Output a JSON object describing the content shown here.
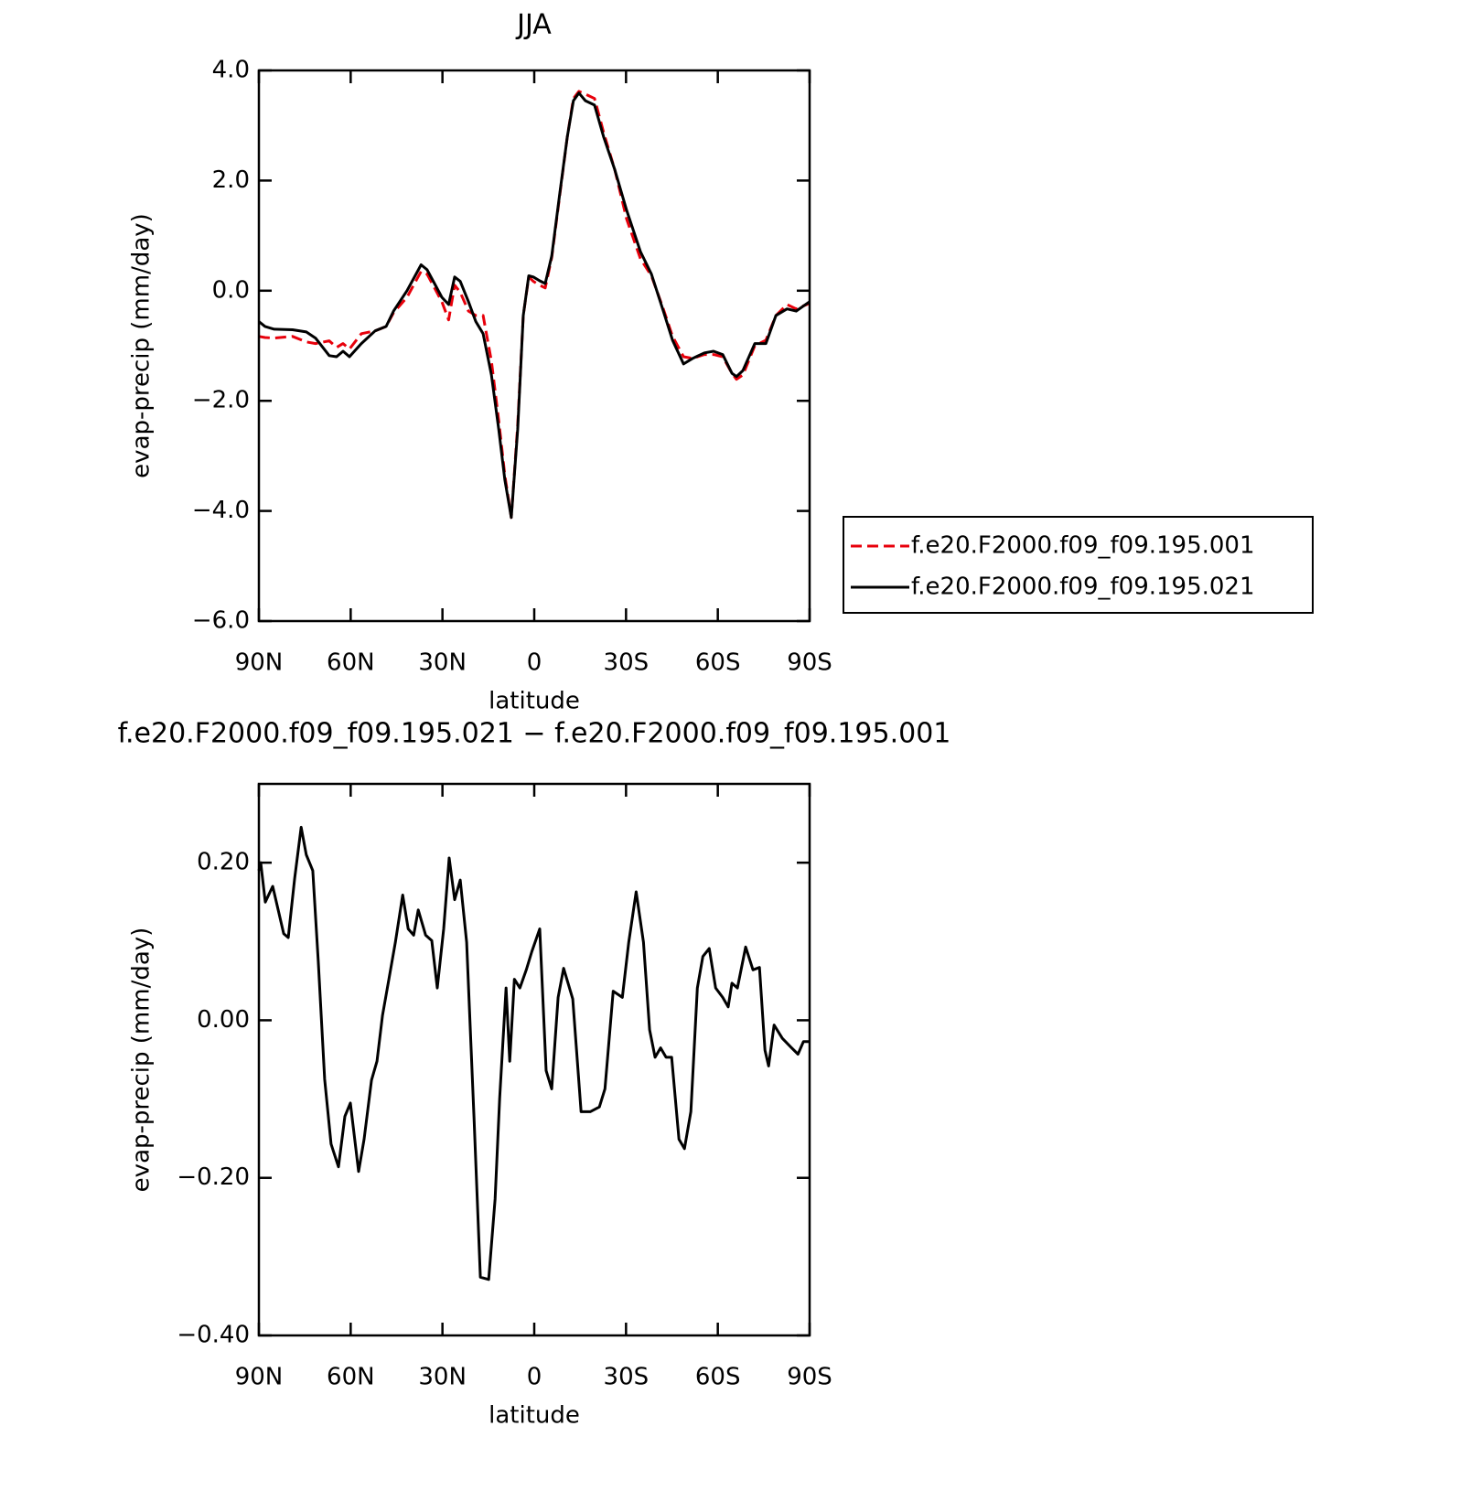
{
  "chart_data": [
    {
      "type": "line",
      "title": "JJA",
      "x_label": "latitude",
      "y_label": "evap-precip (mm/day)",
      "xlim": [
        90,
        -90
      ],
      "xticks": [
        {
          "value": 90,
          "label": "90N"
        },
        {
          "value": 60,
          "label": "60N"
        },
        {
          "value": 30,
          "label": "30N"
        },
        {
          "value": 0,
          "label": "0"
        },
        {
          "value": -30,
          "label": "30S"
        },
        {
          "value": -60,
          "label": "60S"
        },
        {
          "value": -90,
          "label": "90S"
        }
      ],
      "ylim": [
        -6,
        4
      ],
      "yticks": [
        {
          "value": 4,
          "label": "4.0"
        },
        {
          "value": 2,
          "label": "2.0"
        },
        {
          "value": 0,
          "label": "0.0"
        },
        {
          "value": -2,
          "label": "−2.0"
        },
        {
          "value": -4,
          "label": "−4.0"
        },
        {
          "value": -6,
          "label": "−6.0"
        }
      ],
      "legend": "right",
      "x": [
        90,
        88,
        85,
        79,
        74.5,
        71.5,
        67,
        64.6,
        62.5,
        60.4,
        56.5,
        52,
        48.4,
        46,
        41.6,
        37,
        35,
        32.6,
        30.2,
        28,
        26,
        24.2,
        21.5,
        19.1,
        16.7,
        14,
        11.6,
        9.6,
        7.5,
        5.4,
        3.6,
        1.8,
        0.3,
        -1.8,
        -3.6,
        -5.7,
        -8.4,
        -10.8,
        -12.8,
        -14.6,
        -16.7,
        -19.7,
        -22.7,
        -26.3,
        -30.2,
        -34.7,
        -38.3,
        -42.2,
        -45.2,
        -48.8,
        -51.8,
        -55.6,
        -58.6,
        -61.6,
        -64.6,
        -66.1,
        -68.2,
        -72.1,
        -75.7,
        -79,
        -82.6,
        -85.6,
        -90
      ],
      "series": [
        {
          "name": "f.e20.F2000.f09_f09.195.001",
          "color": "#e8000b",
          "dashed": true,
          "values": [
            -0.83,
            -0.85,
            -0.86,
            -0.83,
            -0.93,
            -0.96,
            -0.91,
            -1.03,
            -0.96,
            -1.06,
            -0.78,
            -0.73,
            -0.65,
            -0.4,
            -0.12,
            0.35,
            0.3,
            0.05,
            -0.2,
            -0.53,
            0.1,
            -0.03,
            -0.37,
            -0.45,
            -0.45,
            -1.28,
            -2.36,
            -3.36,
            -4.12,
            -2.44,
            -0.45,
            0.25,
            0.17,
            0.1,
            0.05,
            0.6,
            1.76,
            2.79,
            3.49,
            3.62,
            3.57,
            3.49,
            2.87,
            2.2,
            1.3,
            0.58,
            0.27,
            -0.33,
            -0.83,
            -1.2,
            -1.23,
            -1.16,
            -1.16,
            -1.2,
            -1.5,
            -1.61,
            -1.53,
            -1.0,
            -0.9,
            -0.45,
            -0.25,
            -0.33,
            -0.23
          ]
        },
        {
          "name": "f.e20.F2000.f09_f09.195.021",
          "color": "#000000",
          "dashed": false,
          "values": [
            -0.56,
            -0.65,
            -0.7,
            -0.71,
            -0.75,
            -0.86,
            -1.18,
            -1.2,
            -1.1,
            -1.2,
            -0.96,
            -0.73,
            -0.65,
            -0.37,
            0,
            0.47,
            0.38,
            0.13,
            -0.12,
            -0.25,
            0.25,
            0.17,
            -0.2,
            -0.56,
            -0.78,
            -1.53,
            -2.52,
            -3.44,
            -4.12,
            -2.52,
            -0.45,
            0.27,
            0.25,
            0.18,
            0.13,
            0.63,
            1.79,
            2.79,
            3.45,
            3.59,
            3.45,
            3.37,
            2.79,
            2.2,
            1.46,
            0.71,
            0.3,
            -0.37,
            -0.9,
            -1.33,
            -1.23,
            -1.13,
            -1.1,
            -1.16,
            -1.5,
            -1.56,
            -1.45,
            -0.96,
            -0.96,
            -0.45,
            -0.33,
            -0.37,
            -0.2
          ]
        }
      ]
    },
    {
      "type": "line",
      "title": "f.e20.F2000.f09_f09.195.021 − f.e20.F2000.f09_f09.195.001",
      "x_label": "latitude",
      "y_label": "evap-precip (mm/day)",
      "xlim": [
        90,
        -90
      ],
      "xticks": [
        {
          "value": 90,
          "label": "90N"
        },
        {
          "value": 60,
          "label": "60N"
        },
        {
          "value": 30,
          "label": "30N"
        },
        {
          "value": 0,
          "label": "0"
        },
        {
          "value": -30,
          "label": "30S"
        },
        {
          "value": -60,
          "label": "60S"
        },
        {
          "value": -90,
          "label": "90S"
        }
      ],
      "ylim": [
        -0.4,
        0.3
      ],
      "yticks": [
        {
          "value": 0.2,
          "label": "0.20"
        },
        {
          "value": 0,
          "label": "0.00"
        },
        {
          "value": -0.2,
          "label": "−0.20"
        },
        {
          "value": -0.4,
          "label": "−0.40"
        }
      ],
      "x": [
        90,
        89.4,
        87.9,
        85.5,
        84,
        81.9,
        80.4,
        78.3,
        76.2,
        74.5,
        72.4,
        70.6,
        68.5,
        66.4,
        64,
        61.9,
        60.1,
        57.4,
        55.6,
        53.2,
        51.4,
        49.6,
        47.5,
        45.4,
        43,
        41.2,
        39.4,
        37.9,
        35.5,
        33.5,
        31.7,
        29.6,
        27.8,
        26,
        24.2,
        22.1,
        19.7,
        17.6,
        14.9,
        12.8,
        11.3,
        9.2,
        8,
        6.5,
        4.7,
        2.6,
        0.8,
        -1.8,
        -3.9,
        -5.7,
        -7.8,
        -9.6,
        -12.6,
        -15.3,
        -18.3,
        -21.3,
        -23.1,
        -25.8,
        -28.8,
        -30.9,
        -33.3,
        -35.7,
        -37.7,
        -39.5,
        -41.3,
        -43.1,
        -44.9,
        -47.3,
        -49.1,
        -51.2,
        -53.3,
        -55.1,
        -57.2,
        -59.3,
        -61.6,
        -63.4,
        -64.6,
        -66.4,
        -69.1,
        -71.5,
        -73.6,
        -75.4,
        -76.6,
        -78.4,
        -81.1,
        -84.1,
        -86.2,
        -88,
        -90
      ],
      "series": [
        {
          "color": "#000000",
          "dashed": false,
          "values": [
            0.19,
            0.2,
            0.15,
            0.17,
            0.145,
            0.11,
            0.105,
            0.18,
            0.245,
            0.21,
            0.19,
            0.075,
            -0.075,
            -0.157,
            -0.186,
            -0.122,
            -0.105,
            -0.192,
            -0.151,
            -0.076,
            -0.052,
            0.006,
            0.052,
            0.099,
            0.159,
            0.116,
            0.108,
            0.14,
            0.108,
            0.101,
            0.041,
            0.116,
            0.206,
            0.153,
            0.178,
            0.099,
            -0.122,
            -0.326,
            -0.329,
            -0.227,
            -0.099,
            0.041,
            -0.052,
            0.052,
            0.041,
            0.064,
            0.087,
            0.116,
            -0.064,
            -0.087,
            0.029,
            0.066,
            0.027,
            -0.116,
            -0.116,
            -0.11,
            -0.087,
            0.037,
            0.029,
            0.099,
            0.163,
            0.099,
            -0.012,
            -0.047,
            -0.035,
            -0.047,
            -0.047,
            -0.151,
            -0.163,
            -0.116,
            0.041,
            0.081,
            0.091,
            0.041,
            0.029,
            0.017,
            0.047,
            0.041,
            0.093,
            0.064,
            0.067,
            -0.038,
            -0.058,
            -0.006,
            -0.023,
            -0.035,
            -0.043,
            -0.027,
            -0.027
          ]
        }
      ]
    }
  ]
}
